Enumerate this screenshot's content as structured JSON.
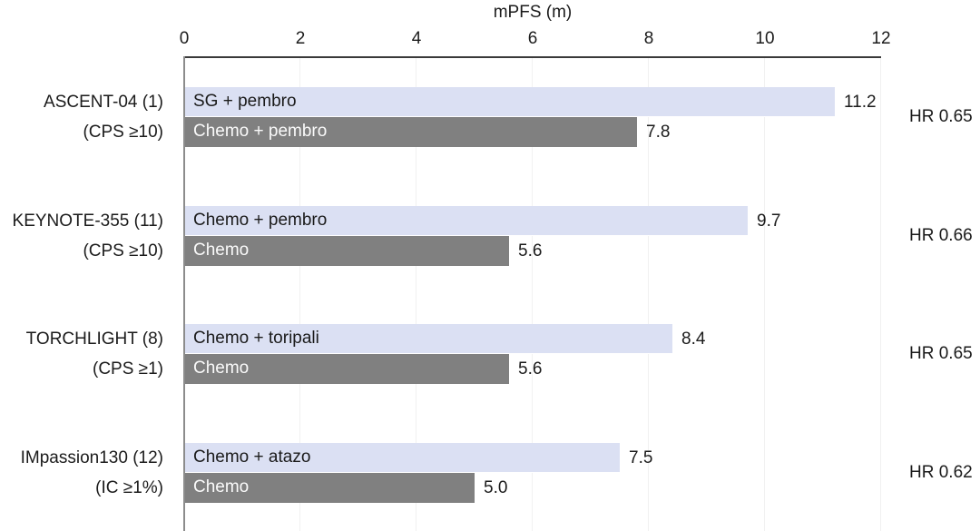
{
  "chart_data": {
    "type": "bar",
    "orientation": "horizontal",
    "xlabel": "mPFS (m)",
    "xlim": [
      0,
      12
    ],
    "x_ticks": [
      0,
      2,
      4,
      6,
      8,
      10,
      12
    ],
    "grid": "very-faint-vertical",
    "colors": {
      "experimental_bar": "#dbe0f3",
      "control_bar": "#808080",
      "axis_line": "#3a3a3a",
      "baseline": "#8c8c8c",
      "text": "#1b1b1b",
      "bar_text_on_control": "#fafafa"
    },
    "groups": [
      {
        "trial": "ASCENT-04 (1)",
        "subgroup": "(CPS ≥10)",
        "hr_label": "HR 0.65",
        "hr_value": 0.65,
        "bars": [
          {
            "label": "SG + pembro",
            "value": 11.2,
            "display": "11.2",
            "role": "experimental"
          },
          {
            "label": "Chemo + pembro",
            "value": 7.8,
            "display": "7.8",
            "role": "control"
          }
        ]
      },
      {
        "trial": "KEYNOTE-355 (11)",
        "subgroup": "(CPS ≥10)",
        "hr_label": "HR 0.66",
        "hr_value": 0.66,
        "bars": [
          {
            "label": "Chemo + pembro",
            "value": 9.7,
            "display": "9.7",
            "role": "experimental"
          },
          {
            "label": "Chemo",
            "value": 5.6,
            "display": "5.6",
            "role": "control"
          }
        ]
      },
      {
        "trial": "TORCHLIGHT (8)",
        "subgroup": "(CPS ≥1)",
        "hr_label": "HR 0.65",
        "hr_value": 0.65,
        "bars": [
          {
            "label": "Chemo + toripali",
            "value": 8.4,
            "display": "8.4",
            "role": "experimental"
          },
          {
            "label": "Chemo",
            "value": 5.6,
            "display": "5.6",
            "role": "control"
          }
        ]
      },
      {
        "trial": "IMpassion130 (12)",
        "subgroup": "(IC ≥1%)",
        "hr_label": "HR 0.62",
        "hr_value": 0.62,
        "bars": [
          {
            "label": "Chemo + atazo",
            "value": 7.5,
            "display": "7.5",
            "role": "experimental"
          },
          {
            "label": "Chemo",
            "value": 5.0,
            "display": "5.0",
            "role": "control"
          }
        ]
      }
    ]
  }
}
